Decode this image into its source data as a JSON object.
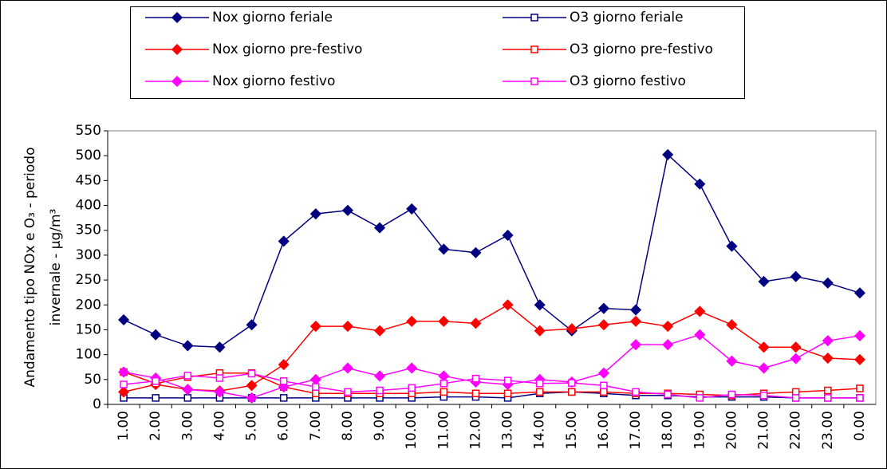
{
  "chart_data": {
    "type": "line",
    "ylabel": [
      "Andamento tipo NOx e O₃ - periodo",
      "invernale - μg/m³"
    ],
    "categories": [
      "1.00",
      "2.00",
      "3.00",
      "4.00",
      "5.00",
      "6.00",
      "7.00",
      "8.00",
      "9.00",
      "10.00",
      "11.00",
      "12.00",
      "13.00",
      "14.00",
      "15.00",
      "16.00",
      "17.00",
      "18.00",
      "19.00",
      "20.00",
      "21.00",
      "22.00",
      "23.00",
      "0.00"
    ],
    "ylim": [
      0,
      550
    ],
    "yticks": [
      0,
      50,
      100,
      150,
      200,
      250,
      300,
      350,
      400,
      450,
      500,
      550
    ],
    "series": [
      {
        "name": "Nox giorno feriale",
        "color": "#000080",
        "marker": "diamond",
        "values": [
          170,
          140,
          118,
          115,
          160,
          328,
          383,
          390,
          355,
          393,
          312,
          305,
          340,
          200,
          148,
          193,
          190,
          502,
          443,
          318,
          247,
          257,
          244,
          224
        ]
      },
      {
        "name": "O3 giorno feriale",
        "color": "#000080",
        "marker": "square",
        "values": [
          13,
          13,
          13,
          13,
          13,
          13,
          13,
          13,
          13,
          13,
          15,
          15,
          13,
          22,
          25,
          22,
          18,
          18,
          15,
          15,
          15,
          13,
          13,
          13
        ]
      },
      {
        "name": "Nox giorno pre-festivo",
        "color": "#ff0000",
        "marker": "diamond",
        "values": [
          25,
          40,
          30,
          27,
          38,
          80,
          157,
          157,
          148,
          167,
          167,
          163,
          200,
          148,
          152,
          160,
          167,
          157,
          187,
          160,
          115,
          115,
          93,
          90
        ]
      },
      {
        "name": "O3 giorno pre-festivo",
        "color": "#ff0000",
        "marker": "square",
        "values": [
          65,
          42,
          55,
          63,
          63,
          35,
          22,
          22,
          22,
          22,
          25,
          22,
          22,
          25,
          25,
          25,
          22,
          22,
          20,
          18,
          22,
          25,
          28,
          32
        ]
      },
      {
        "name": "Nox giorno festivo",
        "color": "#ff00ff",
        "marker": "diamond",
        "values": [
          65,
          53,
          30,
          25,
          13,
          35,
          50,
          73,
          57,
          73,
          57,
          45,
          40,
          50,
          45,
          63,
          120,
          120,
          140,
          87,
          73,
          92,
          128,
          138
        ]
      },
      {
        "name": "O3 giorno festivo",
        "color": "#ff00ff",
        "marker": "square",
        "values": [
          40,
          47,
          58,
          53,
          62,
          47,
          35,
          25,
          28,
          33,
          42,
          52,
          48,
          42,
          43,
          38,
          25,
          20,
          13,
          20,
          18,
          13,
          13,
          13
        ]
      }
    ]
  }
}
